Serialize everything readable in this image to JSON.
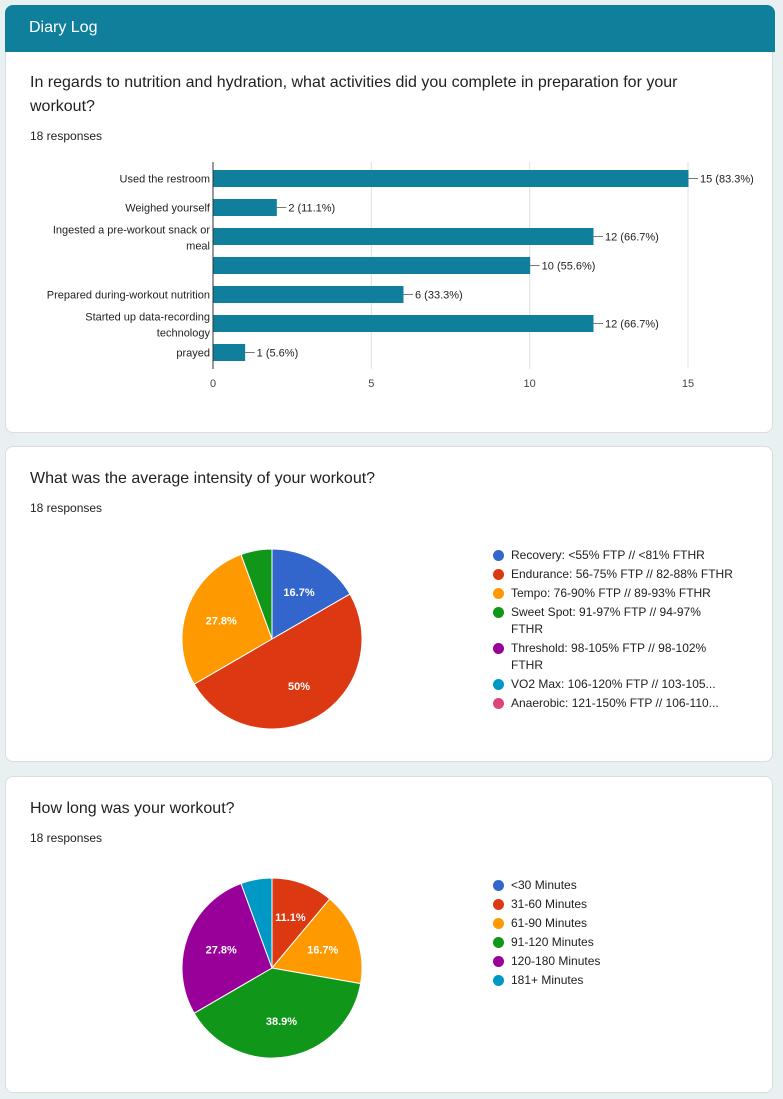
{
  "header": {
    "title": "Diary Log"
  },
  "questions": [
    {
      "title": "In regards to nutrition and hydration, what activities did you complete in preparation for your workout?",
      "responses": "18 responses"
    },
    {
      "title": "What was the average intensity of your workout?",
      "responses": "18 responses"
    },
    {
      "title": "How long was your workout?",
      "responses": "18 responses"
    }
  ],
  "chart_data": [
    {
      "type": "bar",
      "orientation": "horizontal",
      "categories": [
        "Used the restroom",
        "Weighed yourself",
        "Ingested a pre-workout snack or meal",
        "",
        "Prepared during-workout nutrition",
        "Started up data-recording technology",
        "prayed"
      ],
      "category_lines": [
        [
          "Used the restroom"
        ],
        [
          "Weighed yourself"
        ],
        [
          "Ingested a pre-workout snack or",
          "meal"
        ],
        [],
        [
          "Prepared during-workout nutrition"
        ],
        [
          "Started up data-recording",
          "technology"
        ],
        [
          "prayed"
        ]
      ],
      "values": [
        15,
        2,
        12,
        10,
        6,
        12,
        1
      ],
      "data_labels": [
        "15 (83.3%)",
        "2 (11.1%)",
        "12 (66.7%)",
        "10 (55.6%)",
        "6 (33.3%)",
        "12 (66.7%)",
        "1 (5.6%)"
      ],
      "xlim": [
        0,
        15
      ],
      "xticks": [
        "0",
        "5",
        "10",
        "15"
      ],
      "bar_color": "#107f9b",
      "grid": true
    },
    {
      "type": "pie",
      "slices": [
        {
          "label": "Recovery: <55% FTP // <81% FTHR",
          "value": 16.7,
          "pct_label": "16.7%",
          "color": "#3366cc"
        },
        {
          "label": "Endurance: 56-75% FTP // 82-88% FTHR",
          "value": 50,
          "pct_label": "50%",
          "color": "#dc3912"
        },
        {
          "label": "Tempo: 76-90% FTP // 89-93% FTHR",
          "value": 27.8,
          "pct_label": "27.8%",
          "color": "#ff9900"
        },
        {
          "label": "Sweet Spot: 91-97% FTP // 94-97% FTHR",
          "value": 5.6,
          "pct_label": "",
          "color": "#109618"
        },
        {
          "label": "Threshold: 98-105% FTP // 98-102% FTHR",
          "value": 0,
          "pct_label": "",
          "color": "#990099"
        },
        {
          "label": "VO2 Max: 106-120% FTP // 103-105...",
          "value": 0,
          "pct_label": "",
          "color": "#0099c6"
        },
        {
          "label": "Anaerobic: 121-150% FTP // 106-110...",
          "value": 0,
          "pct_label": "",
          "color": "#dd4477"
        }
      ],
      "legend_placement": "right"
    },
    {
      "type": "pie",
      "slices": [
        {
          "label": "<30 Minutes",
          "value": 0,
          "pct_label": "",
          "color": "#3366cc"
        },
        {
          "label": "31-60 Minutes",
          "value": 11.1,
          "pct_label": "11.1%",
          "color": "#dc3912"
        },
        {
          "label": "61-90 Minutes",
          "value": 16.7,
          "pct_label": "16.7%",
          "color": "#ff9900"
        },
        {
          "label": "91-120 Minutes",
          "value": 38.9,
          "pct_label": "38.9%",
          "color": "#109618"
        },
        {
          "label": "120-180 Minutes",
          "value": 27.8,
          "pct_label": "27.8%",
          "color": "#990099"
        },
        {
          "label": "181+ Minutes",
          "value": 5.6,
          "pct_label": "",
          "color": "#0099c6"
        }
      ],
      "legend_placement": "right"
    }
  ]
}
